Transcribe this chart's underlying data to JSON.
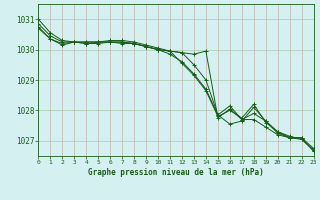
{
  "title": "Graphe pression niveau de la mer (hPa)",
  "background_color": "#d4f0f0",
  "grid_color": "#c0c0c0",
  "line_color": "#1a5c1a",
  "xlim": [
    0,
    23
  ],
  "ylim": [
    1026.5,
    1031.5
  ],
  "yticks": [
    1027,
    1028,
    1029,
    1030,
    1031
  ],
  "xticks": [
    0,
    1,
    2,
    3,
    4,
    5,
    6,
    7,
    8,
    9,
    10,
    11,
    12,
    13,
    14,
    15,
    16,
    17,
    18,
    19,
    20,
    21,
    22,
    23
  ],
  "series": [
    [
      1031.0,
      1030.55,
      1030.3,
      1030.25,
      1030.25,
      1030.25,
      1030.25,
      1030.25,
      1030.2,
      1030.1,
      1030.0,
      1029.95,
      1029.9,
      1029.85,
      1029.95,
      1027.75,
      1028.05,
      1027.7,
      1027.7,
      1027.45,
      1027.2,
      1027.1,
      1027.1,
      1026.65
    ],
    [
      1030.85,
      1030.45,
      1030.25,
      1030.25,
      1030.25,
      1030.25,
      1030.25,
      1030.25,
      1030.2,
      1030.1,
      1030.0,
      1029.95,
      1029.9,
      1029.5,
      1029.0,
      1027.85,
      1027.55,
      1027.65,
      1028.1,
      1027.65,
      1027.3,
      1027.1,
      1027.1,
      1026.75
    ],
    [
      1030.7,
      1030.35,
      1030.2,
      1030.25,
      1030.2,
      1030.25,
      1030.3,
      1030.3,
      1030.25,
      1030.15,
      1030.05,
      1029.95,
      1029.55,
      1029.15,
      1028.65,
      1027.8,
      1028.0,
      1027.75,
      1028.2,
      1027.6,
      1027.3,
      1027.15,
      1027.05,
      1026.7
    ],
    [
      1030.75,
      1030.35,
      1030.15,
      1030.25,
      1030.2,
      1030.2,
      1030.25,
      1030.2,
      1030.2,
      1030.1,
      1030.0,
      1029.85,
      1029.6,
      1029.2,
      1028.7,
      1027.85,
      1028.15,
      1027.7,
      1027.9,
      1027.65,
      1027.25,
      1027.1,
      1027.05,
      1026.68
    ]
  ]
}
